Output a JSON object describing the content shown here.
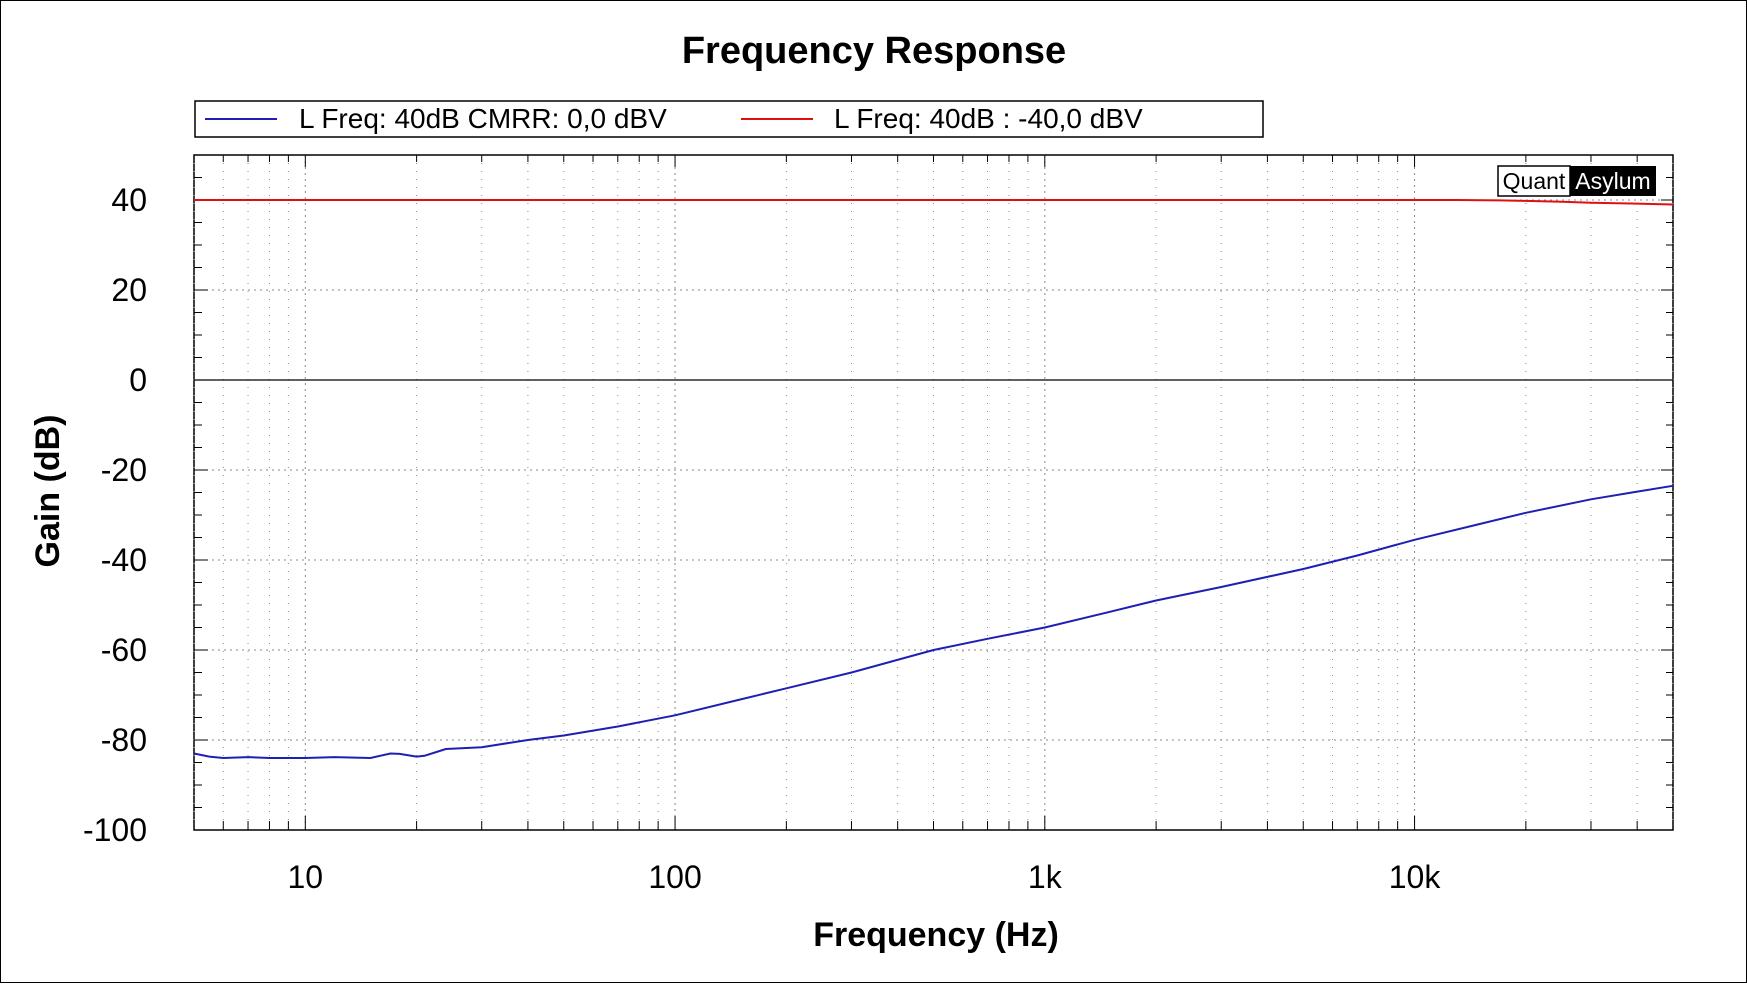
{
  "chart_data": {
    "type": "line",
    "title": "Frequency Response",
    "xlabel": "Frequency (Hz)",
    "ylabel": "Gain (dB)",
    "x_scale": "log",
    "xlim": [
      5,
      50000
    ],
    "ylim": [
      -100,
      50
    ],
    "x_ticks": [
      10,
      100,
      1000,
      10000
    ],
    "x_tick_labels": [
      "10",
      "100",
      "1k",
      "10k"
    ],
    "y_ticks": [
      40,
      20,
      0,
      -20,
      -40,
      -60,
      -80,
      -100
    ],
    "y_tick_labels": [
      "40",
      "20",
      "0",
      "-20",
      "-40",
      "-60",
      "-80",
      "-100"
    ],
    "grid": true,
    "legend_position": "top",
    "watermark": {
      "left": "Quant",
      "right": "Asylum"
    },
    "series": [
      {
        "name": "L Freq: 40dB CMRR: 0,0 dBV",
        "color": "#1f1fb4",
        "points": [
          [
            5,
            -83
          ],
          [
            5.5,
            -83.7
          ],
          [
            6,
            -84
          ],
          [
            7,
            -83.8
          ],
          [
            8,
            -84
          ],
          [
            10,
            -84
          ],
          [
            12,
            -83.8
          ],
          [
            15,
            -84
          ],
          [
            17,
            -83
          ],
          [
            18,
            -83.1
          ],
          [
            20,
            -83.7
          ],
          [
            21,
            -83.5
          ],
          [
            24,
            -82
          ],
          [
            30,
            -81.6
          ],
          [
            40,
            -80
          ],
          [
            50,
            -79
          ],
          [
            70,
            -77
          ],
          [
            100,
            -74.5
          ],
          [
            150,
            -71
          ],
          [
            200,
            -68.5
          ],
          [
            300,
            -65
          ],
          [
            500,
            -60
          ],
          [
            700,
            -57.5
          ],
          [
            1000,
            -55
          ],
          [
            1500,
            -51.5
          ],
          [
            2000,
            -49
          ],
          [
            3000,
            -46
          ],
          [
            5000,
            -42
          ],
          [
            7000,
            -39
          ],
          [
            10000,
            -35.5
          ],
          [
            15000,
            -32
          ],
          [
            20000,
            -29.5
          ],
          [
            30000,
            -26.5
          ],
          [
            40000,
            -24.8
          ],
          [
            50000,
            -23.5
          ]
        ]
      },
      {
        "name": "L Freq: 40dB : -40,0 dBV",
        "color": "#e01010",
        "points": [
          [
            5,
            40
          ],
          [
            100,
            40
          ],
          [
            1000,
            40
          ],
          [
            10000,
            40
          ],
          [
            13000,
            40
          ],
          [
            17000,
            39.9
          ],
          [
            20000,
            39.8
          ],
          [
            25000,
            39.6
          ],
          [
            30000,
            39.4
          ],
          [
            40000,
            39.2
          ],
          [
            50000,
            39
          ]
        ]
      }
    ]
  }
}
